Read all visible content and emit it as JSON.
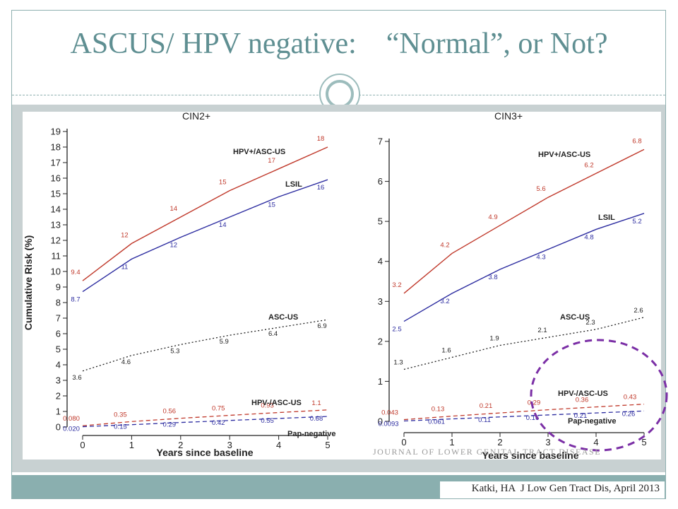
{
  "slide": {
    "title": "ASCUS/ HPV negative:    “Normal”, or Not?",
    "citation": "Katki, HA  J Low Gen Tract Dis, April 2013",
    "watermark": "JOURNAL OF LOWER GENITAL TRACT DISEASE"
  },
  "colors": {
    "red": "#c0392b",
    "blue": "#2c2ca0",
    "black": "#222222",
    "highlight": "#7b2fa6",
    "title": "#5f8f92"
  },
  "chart_data": [
    {
      "type": "line",
      "title": "CIN2+",
      "xlabel": "Years since baseline",
      "ylabel": "Cumulative Risk (%)",
      "x": [
        0,
        1,
        2,
        3,
        4,
        5
      ],
      "ylim": [
        0,
        19
      ],
      "yticks": [
        0,
        1,
        2,
        3,
        4,
        5,
        6,
        7,
        8,
        9,
        10,
        11,
        12,
        13,
        14,
        15,
        16,
        17,
        18,
        19
      ],
      "grid": false,
      "series": [
        {
          "name": "HPV+/ASC-US",
          "color": "red",
          "dash": "solid",
          "values": [
            9.4,
            11.8,
            13.5,
            15.2,
            16.6,
            18.0
          ],
          "labels": [
            "9.4",
            "12",
            "14",
            "15",
            "17",
            "18"
          ]
        },
        {
          "name": "LSIL",
          "color": "blue",
          "dash": "solid",
          "values": [
            8.7,
            10.8,
            12.2,
            13.5,
            14.8,
            15.9
          ],
          "labels": [
            "8.7",
            "11",
            "12",
            "14",
            "15",
            "16"
          ]
        },
        {
          "name": "ASC-US",
          "color": "black",
          "dash": "dotted",
          "values": [
            3.6,
            4.6,
            5.3,
            5.9,
            6.4,
            6.9
          ],
          "labels": [
            "3.6",
            "4.6",
            "5.3",
            "5.9",
            "6.4",
            "6.9"
          ]
        },
        {
          "name": "HPV-/ASC-US",
          "color": "red",
          "dash": "dashed",
          "values": [
            0.08,
            0.35,
            0.56,
            0.75,
            0.93,
            1.1
          ],
          "labels": [
            "0.080",
            "0.35",
            "0.56",
            "0.75",
            "0.93",
            "1.1"
          ]
        },
        {
          "name": "Pap-negative",
          "color": "blue",
          "dash": "dashed",
          "values": [
            0.02,
            0.15,
            0.29,
            0.42,
            0.55,
            0.68
          ],
          "labels": [
            "0.020",
            "0.15",
            "0.29",
            "0.42",
            "0.55",
            "0.68"
          ]
        }
      ]
    },
    {
      "type": "line",
      "title": "CIN3+",
      "xlabel": "Years since baseline",
      "ylabel": "",
      "x": [
        0,
        1,
        2,
        3,
        4,
        5
      ],
      "ylim": [
        0,
        7
      ],
      "yticks": [
        0,
        1,
        2,
        3,
        4,
        5,
        6,
        7
      ],
      "grid": false,
      "series": [
        {
          "name": "HPV+/ASC-US",
          "color": "red",
          "dash": "solid",
          "values": [
            3.2,
            4.2,
            4.9,
            5.6,
            6.2,
            6.8
          ],
          "labels": [
            "3.2",
            "4.2",
            "4.9",
            "5.6",
            "6.2",
            "6.8"
          ]
        },
        {
          "name": "LSIL",
          "color": "blue",
          "dash": "solid",
          "values": [
            2.5,
            3.2,
            3.8,
            4.3,
            4.8,
            5.2
          ],
          "labels": [
            "2.5",
            "3.2",
            "3.8",
            "4.3",
            "4.8",
            "5.2"
          ]
        },
        {
          "name": "ASC-US",
          "color": "black",
          "dash": "dotted",
          "values": [
            1.3,
            1.6,
            1.9,
            2.1,
            2.3,
            2.6
          ],
          "labels": [
            "1.3",
            "1.6",
            "1.9",
            "2.1",
            "2.3",
            "2.6"
          ]
        },
        {
          "name": "HPV-/ASC-US",
          "color": "red",
          "dash": "dashed",
          "values": [
            0.043,
            0.13,
            0.21,
            0.29,
            0.36,
            0.43
          ],
          "labels": [
            "0.043",
            "0.13",
            "0.21",
            "0.29",
            "0.36",
            "0.43"
          ]
        },
        {
          "name": "Pap-negative",
          "color": "blue",
          "dash": "dashed",
          "values": [
            0.0093,
            0.061,
            0.11,
            0.16,
            0.21,
            0.26
          ],
          "labels": [
            "0.0093",
            "0.061",
            "0.11",
            "0.16",
            "0.21",
            "0.26"
          ]
        }
      ]
    }
  ]
}
